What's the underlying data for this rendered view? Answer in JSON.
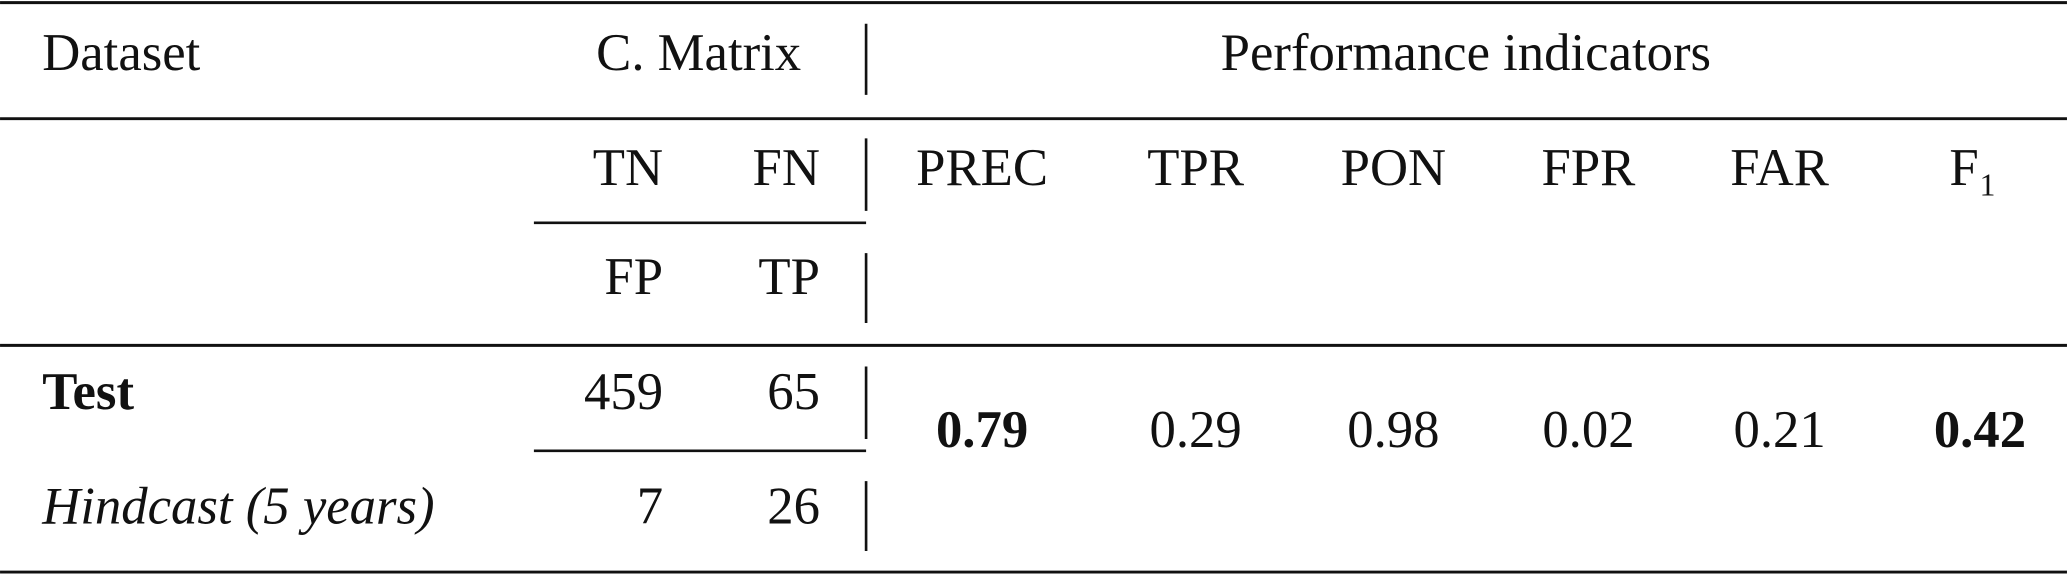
{
  "header": {
    "dataset": "Dataset",
    "matrix": "C. Matrix",
    "performance": "Performance indicators"
  },
  "subheader": {
    "matrix_top": [
      "TN",
      "FN"
    ],
    "matrix_bottom": [
      "FP",
      "TP"
    ],
    "indicators": [
      "PREC",
      "TPR",
      "PON",
      "FPR",
      "FAR",
      "F₁"
    ]
  },
  "rows": [
    {
      "name": "Test",
      "matrix": [
        459,
        65
      ]
    },
    {
      "name": "Hindcast (5 years)",
      "matrix": [
        7,
        26
      ]
    }
  ],
  "indicator_values": [
    0.79,
    0.29,
    0.98,
    0.02,
    0.21,
    0.42
  ]
}
